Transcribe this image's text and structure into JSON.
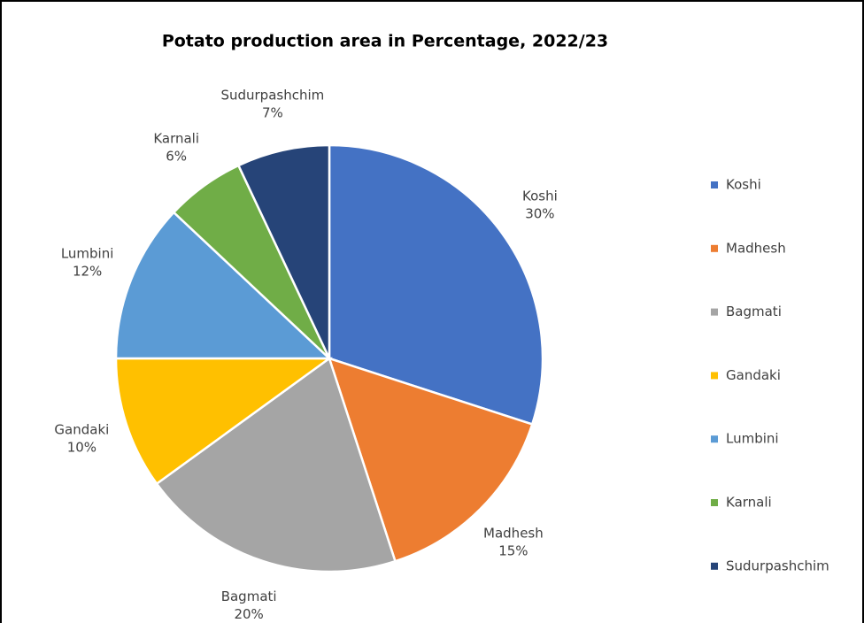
{
  "chart_data": {
    "type": "pie",
    "title": "Potato production area in Percentage, 2022/23",
    "categories": [
      "Koshi",
      "Madhesh",
      "Bagmati",
      "Gandaki",
      "Lumbini",
      "Karnali",
      "Sudurpashchim"
    ],
    "values": [
      30,
      15,
      20,
      10,
      12,
      6,
      7
    ],
    "value_labels": [
      "30%",
      "15%",
      "20%",
      "10%",
      "12%",
      "6%",
      "7%"
    ],
    "colors": [
      "#4472c4",
      "#ed7d31",
      "#a5a5a5",
      "#ffc000",
      "#5b9bd5",
      "#70ad47",
      "#264478"
    ],
    "legend": "right"
  }
}
